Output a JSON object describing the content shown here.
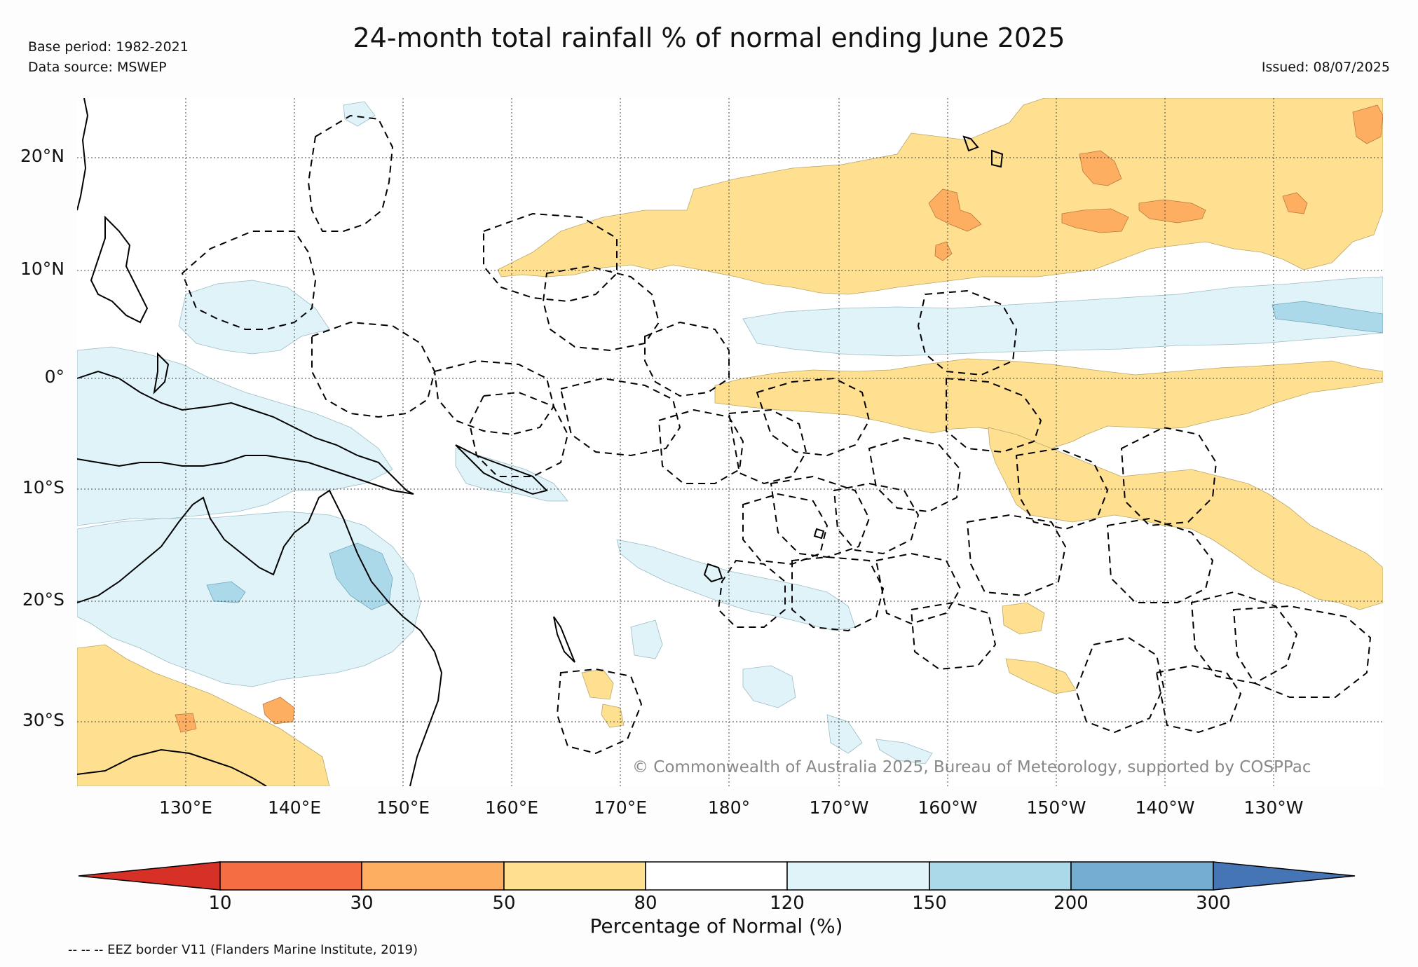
{
  "title": "24-month total rainfall % of normal ending June 2025",
  "base_period": "Base period: 1982-2021",
  "data_source": "Data source: MSWEP",
  "issued": "Issued: 08/07/2025",
  "copyright": "© Commonwealth of Australia 2025, Bureau of Meteorology, supported by COSPPac",
  "footnote": "-- -- -- EEZ border V11 (Flanders Marine Institute, 2019)",
  "map": {
    "lat_labels": [
      "20°N",
      "10°N",
      "0°",
      "10°S",
      "20°S",
      "30°S"
    ],
    "lon_labels": [
      "130°E",
      "140°E",
      "150°E",
      "160°E",
      "170°E",
      "180°",
      "170°W",
      "160°W",
      "150°W",
      "140°W",
      "130°W"
    ]
  },
  "colorbar": {
    "title": "Percentage of Normal (%)",
    "tick_labels": [
      "10",
      "30",
      "50",
      "80",
      "120",
      "150",
      "200",
      "300"
    ],
    "colors": {
      "below_10": "#d73027",
      "10_30": "#f46d43",
      "30_50": "#fdae61",
      "50_80": "#fee090",
      "80_120": "#ffffff",
      "120_150": "#e0f3f8",
      "150_200": "#abd9e9",
      "200_300": "#74add1",
      "above_300": "#4575b4"
    }
  }
}
